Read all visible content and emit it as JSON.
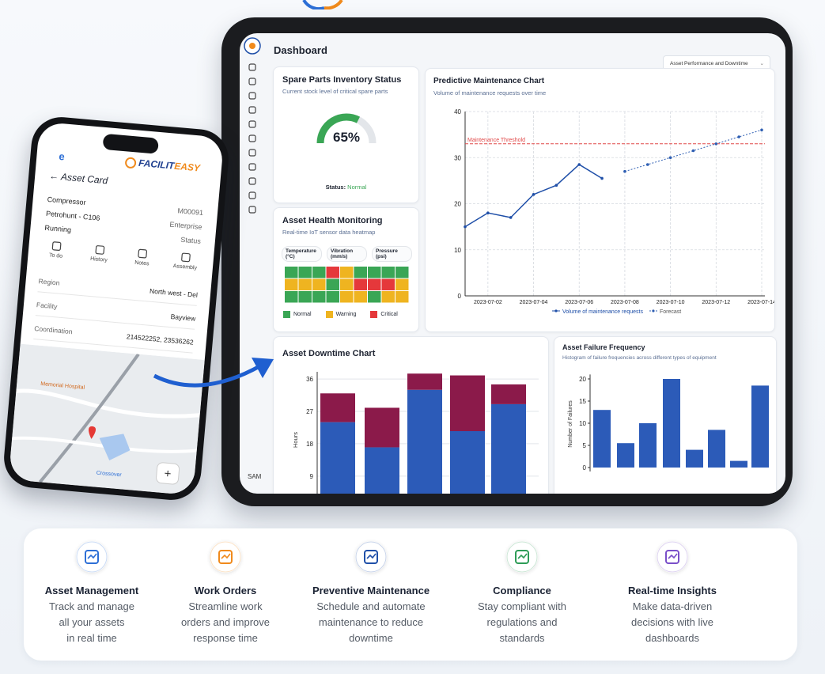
{
  "phone": {
    "app_letter": "e",
    "brand": [
      "FACILIT",
      "EASY"
    ],
    "title": "Asset Card",
    "summary": [
      {
        "left": "Compressor",
        "right": "M00091"
      },
      {
        "left": "Petrohunt - C106",
        "right": "Enterprise"
      },
      {
        "left": "Running",
        "right": "Status"
      }
    ],
    "tabs": [
      "To do",
      "History",
      "Notes",
      "Assembly"
    ],
    "details": [
      {
        "label": "Region",
        "value": "North west - Del"
      },
      {
        "label": "Facility",
        "value": "Bayview"
      },
      {
        "label": "Coordination",
        "value": "214522252, 23536262"
      }
    ],
    "map_labels": [
      "Memorial Hospital",
      "Crossover"
    ],
    "fab": "+"
  },
  "dashboard": {
    "title": "Dashboard",
    "dropdown": "Asset Performance and Downtime",
    "sidebar_footer": "SAM",
    "inventory": {
      "title": "Spare Parts Inventory Status",
      "subtitle": "Current stock level of critical spare parts",
      "value": 65,
      "value_label": "65%",
      "color": "#3aa655",
      "status_label": "Status:",
      "status": "Normal"
    },
    "heatmap": {
      "title": "Asset Health Monitoring",
      "subtitle": "Real-time IoT sensor data heatmap",
      "columns": [
        "Temperature (°C)",
        "Vibration (mm/s)",
        "Pressure (psi)"
      ],
      "legend": [
        {
          "name": "Normal",
          "color": "#3aa655"
        },
        {
          "name": "Warning",
          "color": "#efb420"
        },
        {
          "name": "Critical",
          "color": "#e5383b"
        }
      ],
      "rows": [
        [
          0,
          0,
          0,
          2,
          1,
          0,
          0,
          0,
          0
        ],
        [
          1,
          1,
          1,
          0,
          1,
          2,
          2,
          2,
          1
        ],
        [
          0,
          0,
          0,
          0,
          1,
          1,
          0,
          1,
          1
        ]
      ]
    },
    "predictive": {
      "title": "Predictive Maintenance Chart",
      "subtitle": "Volume of maintenance requests over time",
      "x": [
        "2023-07-01",
        "2023-07-02",
        "2023-07-03",
        "2023-07-04",
        "2023-07-05",
        "2023-07-06",
        "2023-07-07",
        "2023-07-08",
        "2023-07-09",
        "2023-07-10",
        "2023-07-11",
        "2023-07-12",
        "2023-07-13",
        "2023-07-14"
      ],
      "xlim": [
        "2023-07-01",
        "2023-07-14"
      ],
      "xticks": [
        "2023-07-02",
        "2023-07-04",
        "2023-07-06",
        "2023-07-08",
        "2023-07-10",
        "2023-07-12",
        "2023-07-14"
      ],
      "ylim": [
        0,
        40
      ],
      "yticks": [
        0,
        10,
        20,
        30,
        40
      ],
      "grid": true,
      "threshold": {
        "value": 33,
        "label": "Maintenance Threshold",
        "color": "#e04848"
      },
      "series": [
        {
          "name": "Volume of maintenance requests",
          "color": "#1f4fa8",
          "values": [
            15,
            18,
            17,
            22,
            24,
            28.5,
            25.5,
            null,
            null,
            null,
            null,
            null,
            null,
            null
          ]
        },
        {
          "name": "Forecast",
          "color": "#2f5fb3",
          "values": [
            null,
            null,
            null,
            null,
            null,
            null,
            null,
            27,
            28.5,
            30,
            31.5,
            33,
            34.5,
            36
          ]
        }
      ]
    },
    "downtime": {
      "title": "Asset Downtime Chart",
      "ylabel": "Hours",
      "ylim": [
        5,
        38
      ],
      "yticks": [
        9,
        18,
        27,
        36
      ],
      "series": [
        {
          "color": "#2c5bb8",
          "values": [
            24,
            17,
            33,
            21.5,
            29
          ]
        },
        {
          "color": "#8b1a4a",
          "values": [
            8,
            11,
            4.5,
            15.5,
            5.5
          ]
        }
      ]
    },
    "failure": {
      "title": "Asset Failure Frequency",
      "subtitle": "Histogram of failure frequencies across different types of equipment",
      "ylabel": "Number of Failures",
      "ylim": [
        0,
        21
      ],
      "yticks": [
        0,
        5,
        10,
        15,
        20
      ],
      "color": "#2c5bb8",
      "values": [
        13,
        5.5,
        10,
        20,
        4,
        8.5,
        1.5,
        18.5
      ]
    }
  },
  "features": [
    {
      "title": "Asset Management",
      "lines": [
        "Track and manage",
        "all your assets",
        "in real time"
      ],
      "color": "#2d6fd6"
    },
    {
      "title": "Work Orders",
      "lines": [
        "Streamline work",
        "orders and improve",
        "response time"
      ],
      "color": "#f08a1c"
    },
    {
      "title": "Preventive Maintenance",
      "lines": [
        "Schedule and automate",
        "maintenance to reduce",
        "downtime"
      ],
      "color": "#1f4fa8"
    },
    {
      "title": "Compliance",
      "lines": [
        "Stay compliant with",
        "regulations and",
        "standards"
      ],
      "color": "#2e9c57"
    },
    {
      "title": "Real-time Insights",
      "lines": [
        "Make data-driven",
        "decisions with live",
        "dashboards"
      ],
      "color": "#7a4fc9"
    }
  ]
}
